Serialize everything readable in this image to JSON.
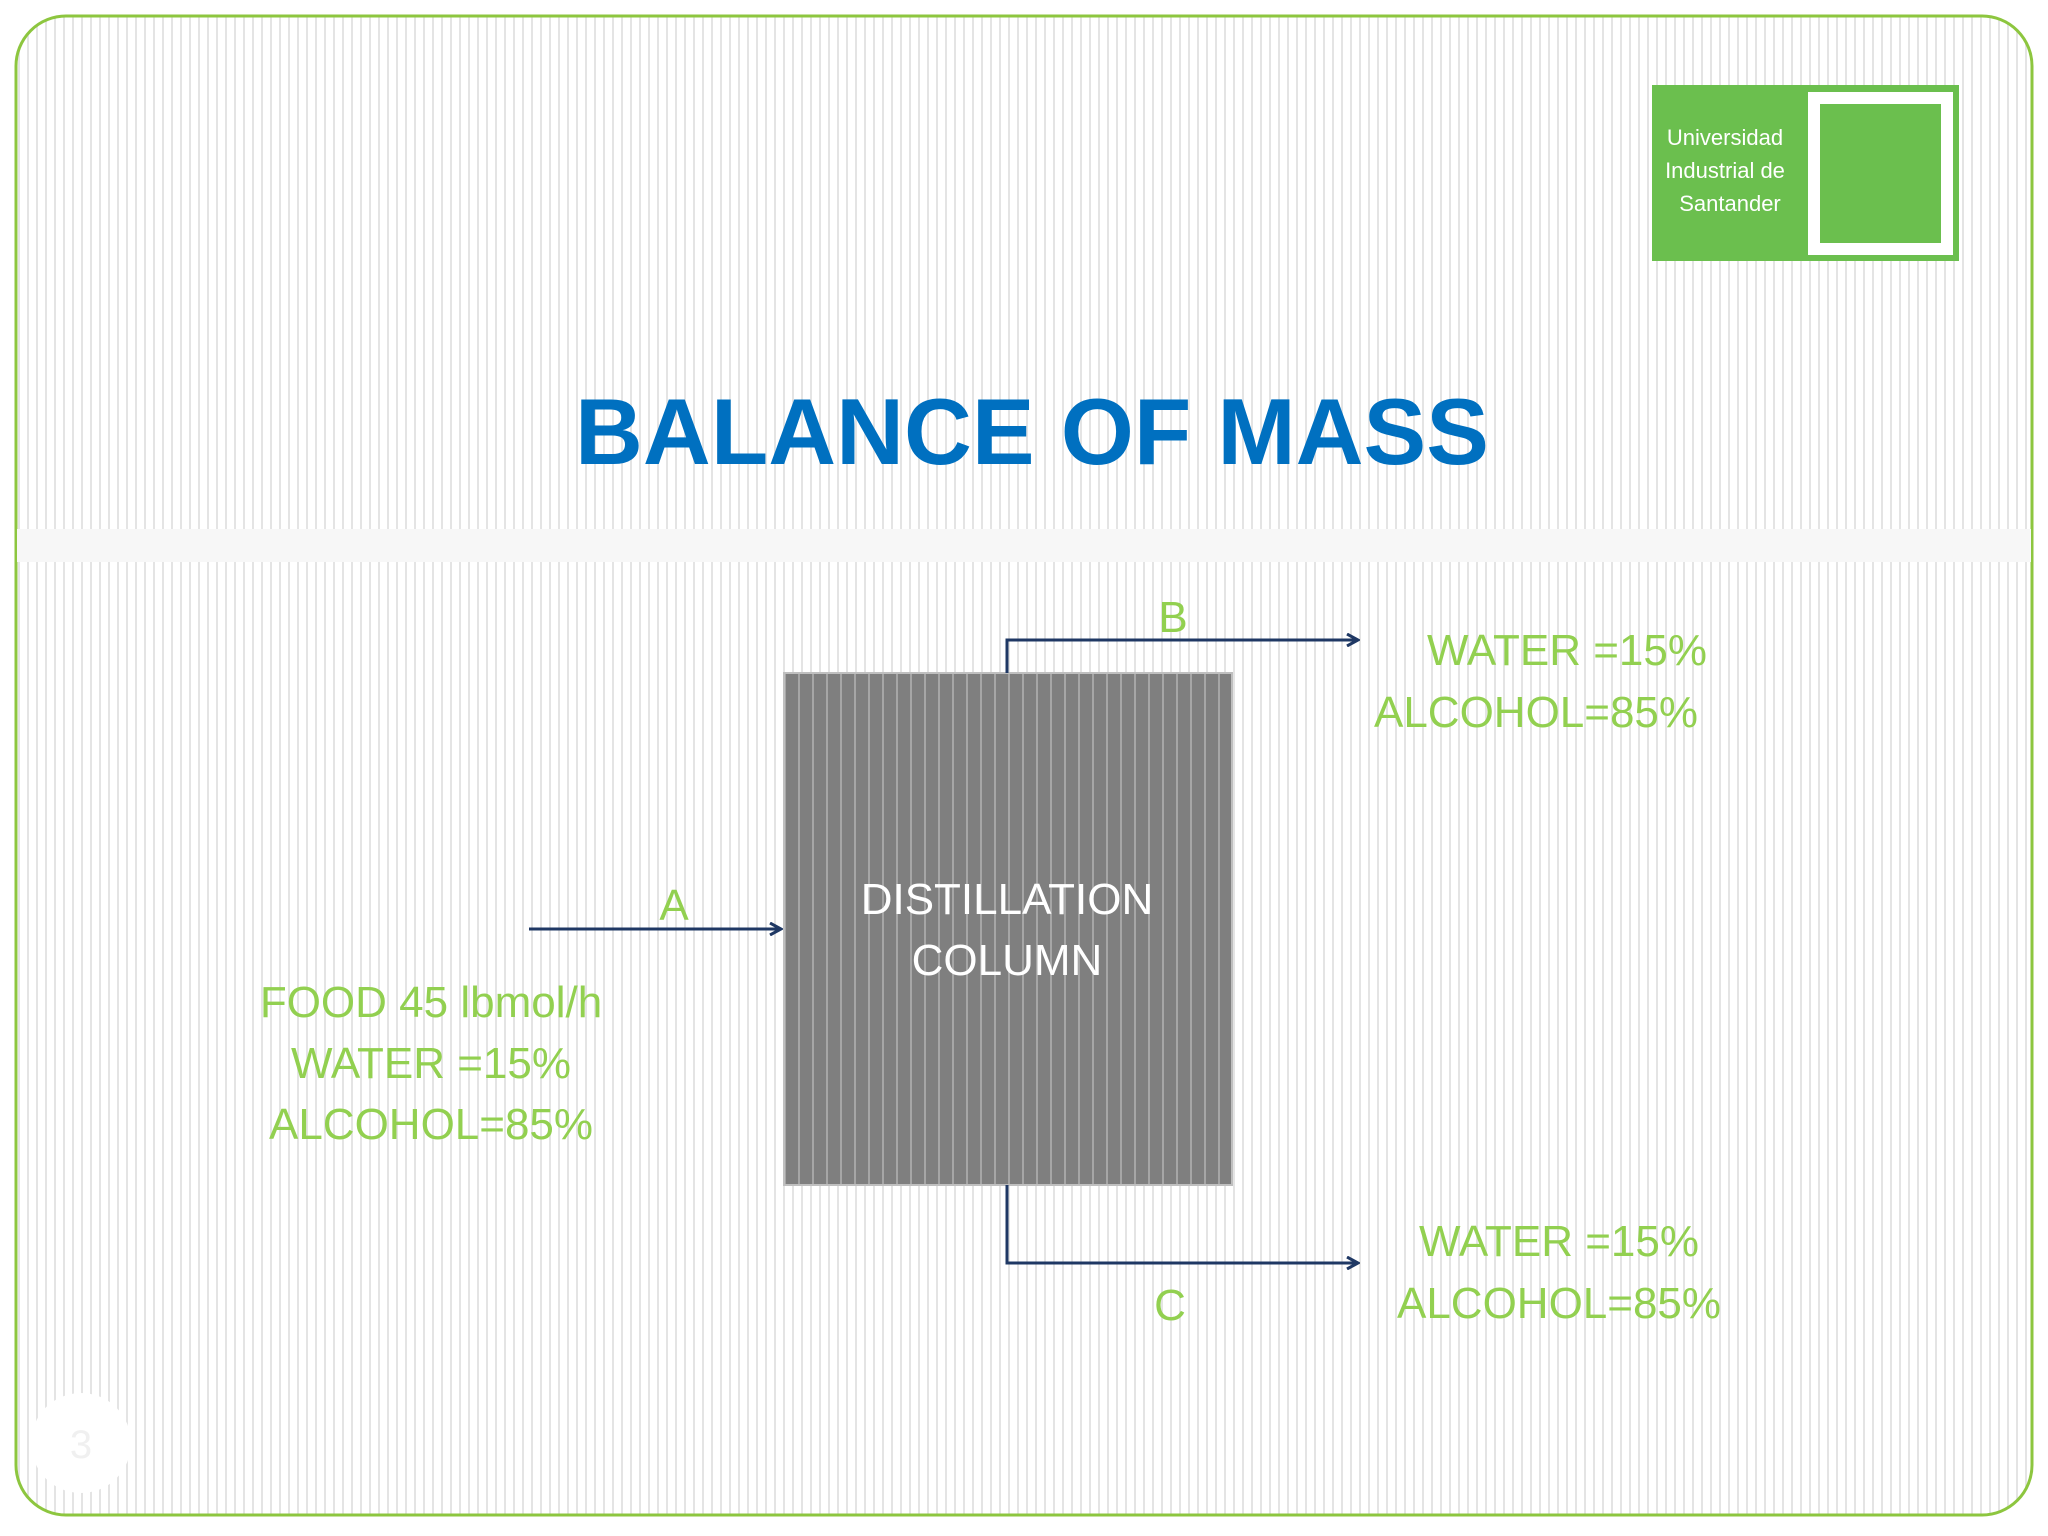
{
  "logo": {
    "lines": [
      "Universidad",
      "Industrial de",
      "Santander"
    ]
  },
  "title": "BALANCE OF MASS",
  "column": {
    "lines": [
      "DISTILLATION",
      "COLUMN"
    ]
  },
  "streams": {
    "a": {
      "label": "A",
      "lines": [
        "FOOD 45 lbmol/h",
        "WATER =15%",
        "ALCOHOL=85%"
      ]
    },
    "b": {
      "label": "B",
      "lines": [
        "WATER =15%",
        "ALCOHOL=85%"
      ]
    },
    "c": {
      "label": "C",
      "lines": [
        "WATER =15%",
        "ALCOHOL=85%"
      ]
    }
  },
  "slide_number": "3"
}
